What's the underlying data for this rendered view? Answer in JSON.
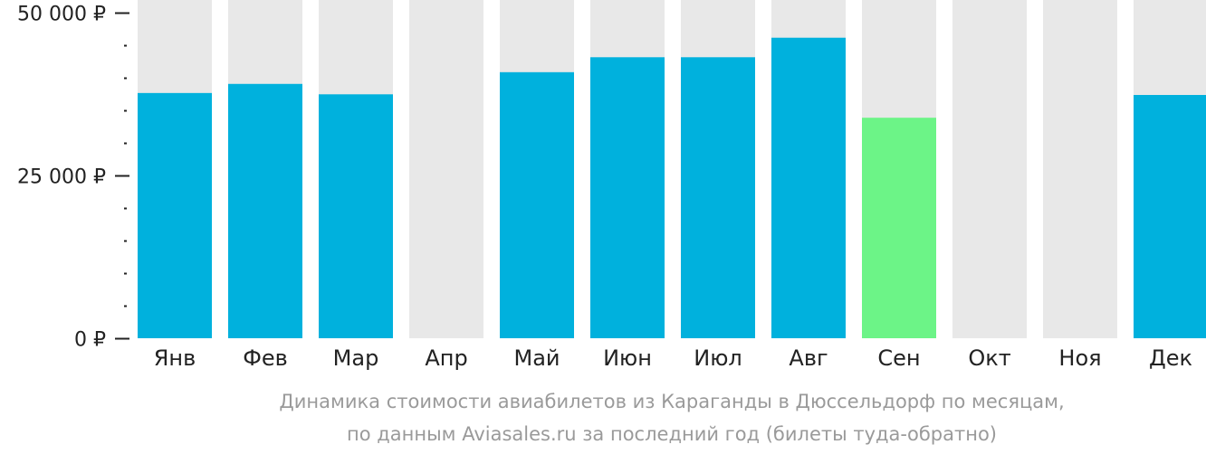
{
  "chart_data": {
    "type": "bar",
    "categories": [
      "Янв",
      "Фев",
      "Мар",
      "Апр",
      "Май",
      "Июн",
      "Июл",
      "Авг",
      "Сен",
      "Окт",
      "Ноя",
      "Дек"
    ],
    "values": [
      37700,
      39100,
      37500,
      null,
      40900,
      43200,
      43200,
      46200,
      33900,
      null,
      null,
      37400
    ],
    "ylim": [
      0,
      52000
    ],
    "yticks": [
      {
        "value": 0,
        "label": "0 ₽"
      },
      {
        "value": 25000,
        "label": "25 000 ₽"
      },
      {
        "value": 50000,
        "label": "50 000 ₽"
      }
    ],
    "minor_tick_step": 5000,
    "highlight_index": 8,
    "colors": {
      "bar": "#00b1dd",
      "highlight": "#6cf487",
      "background_column": "#e8e8e8",
      "axis": "#222222",
      "caption": "#9a9a9a"
    },
    "caption": [
      "Динамика стоимости авиабилетов из Караганды в Дюссельдорф по месяцам,",
      "по данным Aviasales.ru за последний год (билеты туда-обратно)"
    ]
  }
}
